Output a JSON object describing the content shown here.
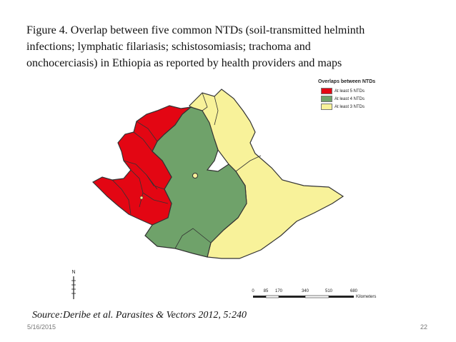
{
  "caption": {
    "line1": "Figure 4. Overlap between five common NTDs (soil-transmitted helminth",
    "line2": "infections; lymphatic filariasis; schistosomiasis; trachoma and",
    "line3": "onchocerciasis) in Ethiopia as reported by health providers and maps"
  },
  "legend": {
    "title": "Overlaps between NTDs",
    "items": [
      {
        "label": "At least 5 NTDs",
        "color": "#e30613"
      },
      {
        "label": "At least 4 NTDs",
        "color": "#6fa26a"
      },
      {
        "label": "At least 3 NTDs",
        "color": "#f8f29a"
      }
    ]
  },
  "north_arrow": {
    "letter": "N"
  },
  "scale_bar": {
    "ticks": [
      "0",
      "85",
      "170",
      "340",
      "510",
      "680"
    ],
    "units": "Kilometers"
  },
  "source": "Source:Deribe et al. Parasites & Vectors 2012, 5:240",
  "footer": {
    "date": "5/16/2015",
    "page": "22"
  },
  "colors": {
    "red_zone": "#e30613",
    "green_zone": "#6fa26a",
    "yellow_zone": "#f8f29a",
    "border": "#333333"
  }
}
